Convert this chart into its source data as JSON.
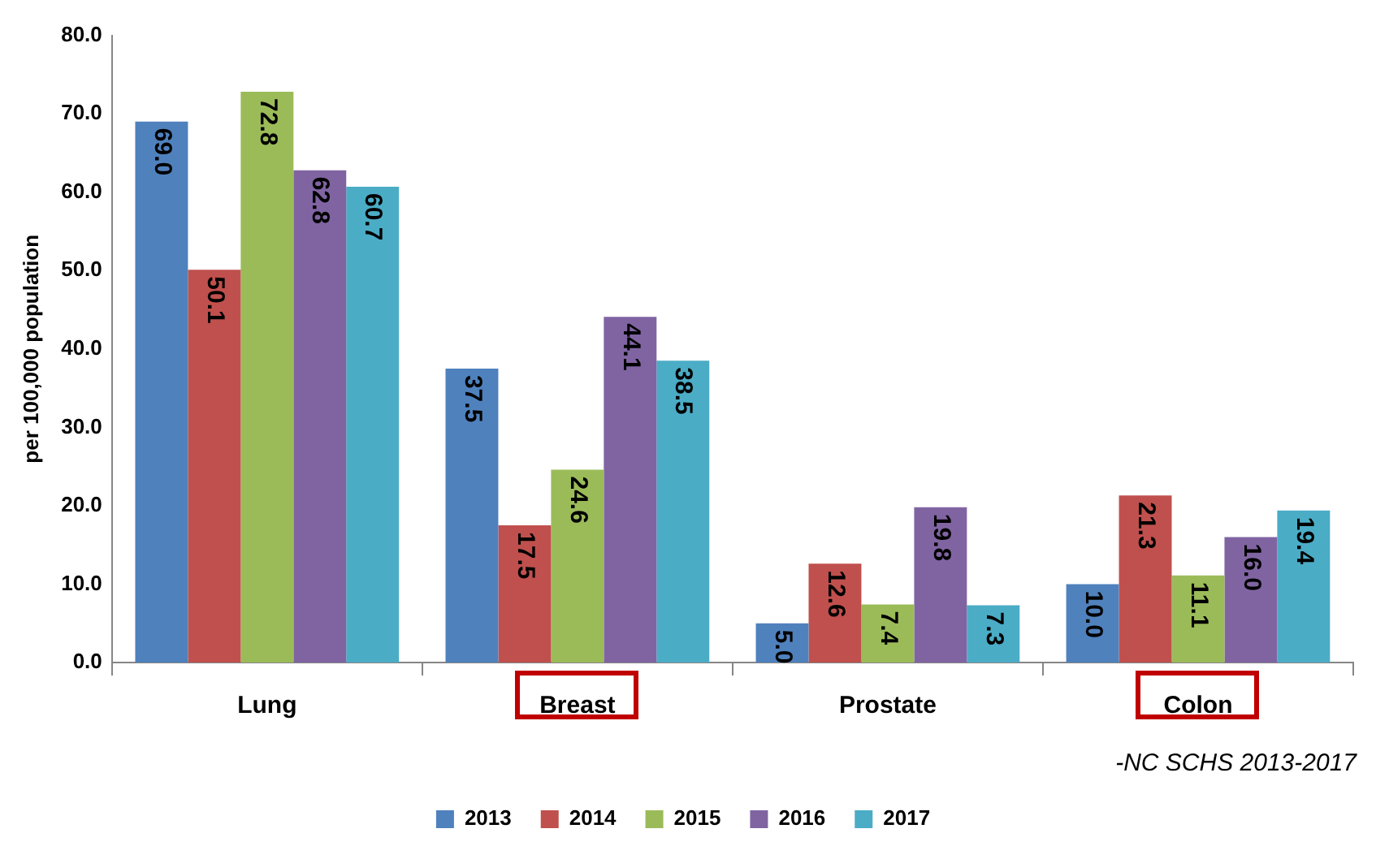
{
  "chart_data": {
    "type": "bar",
    "ylabel": "per 100,000 population",
    "categories": [
      "Lung",
      "Breast",
      "Prostate",
      "Colon"
    ],
    "series": [
      {
        "name": "2013",
        "color": "#4f81bd",
        "values": [
          69.0,
          37.5,
          5.0,
          10.0
        ],
        "value_labels": [
          "69.0",
          "37.5",
          "5.0",
          "10.0"
        ]
      },
      {
        "name": "2014",
        "color": "#c0504d",
        "values": [
          50.1,
          17.5,
          12.6,
          21.3
        ],
        "value_labels": [
          "50.1",
          "17.5",
          "12.6",
          "21.3"
        ]
      },
      {
        "name": "2015",
        "color": "#9bbb59",
        "values": [
          72.8,
          24.6,
          7.4,
          11.1
        ],
        "value_labels": [
          "72.8",
          "24.6",
          "7.4",
          "11.1"
        ]
      },
      {
        "name": "2016",
        "color": "#8064a2",
        "values": [
          62.8,
          44.1,
          19.8,
          16.0
        ],
        "value_labels": [
          "62.8",
          "44.1",
          "19.8",
          "16.0"
        ]
      },
      {
        "name": "2017",
        "color": "#4bacc6",
        "values": [
          60.7,
          38.5,
          7.3,
          19.4
        ],
        "value_labels": [
          "60.7",
          "38.5",
          "7.3",
          "19.4"
        ]
      }
    ],
    "ylim": [
      0,
      80
    ],
    "yticks": [
      {
        "value": 0,
        "label": "0.0"
      },
      {
        "value": 10,
        "label": "10.0"
      },
      {
        "value": 20,
        "label": "20.0"
      },
      {
        "value": 30,
        "label": "30.0"
      },
      {
        "value": 40,
        "label": "40.0"
      },
      {
        "value": 50,
        "label": "50.0"
      },
      {
        "value": 60,
        "label": "60.0"
      },
      {
        "value": 70,
        "label": "70.0"
      },
      {
        "value": 80,
        "label": "80.0"
      }
    ],
    "grid": false,
    "legend": "bottom",
    "annotations": [
      "-NC SCHS 2013-2017"
    ]
  }
}
